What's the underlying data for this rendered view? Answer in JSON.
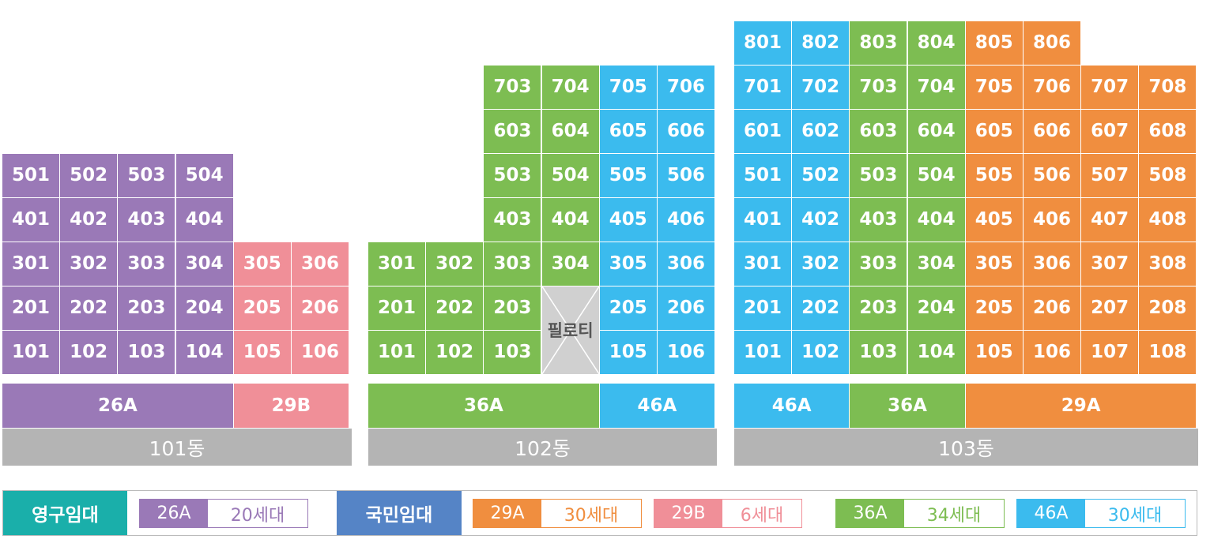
{
  "colors": {
    "26A": "#9a79b7",
    "29B": "#f08f98",
    "36A": "#7dbd52",
    "46A": "#3bbbee",
    "29A": "#f08e3f",
    "grey": "#b4b4b4",
    "yeonggu": "#1aafaa",
    "gukmin": "#5584c6"
  },
  "buildings": [
    {
      "name": "101동",
      "floors": [
        {
          "floor": 5,
          "units": [
            {
              "no": "501",
              "type": "26A"
            },
            {
              "no": "502",
              "type": "26A"
            },
            {
              "no": "503",
              "type": "26A"
            },
            {
              "no": "504",
              "type": "26A"
            }
          ]
        },
        {
          "floor": 4,
          "units": [
            {
              "no": "401",
              "type": "26A"
            },
            {
              "no": "402",
              "type": "26A"
            },
            {
              "no": "403",
              "type": "26A"
            },
            {
              "no": "404",
              "type": "26A"
            }
          ]
        },
        {
          "floor": 3,
          "units": [
            {
              "no": "301",
              "type": "26A"
            },
            {
              "no": "302",
              "type": "26A"
            },
            {
              "no": "303",
              "type": "26A"
            },
            {
              "no": "304",
              "type": "26A"
            },
            {
              "no": "305",
              "type": "29B"
            },
            {
              "no": "306",
              "type": "29B"
            }
          ]
        },
        {
          "floor": 2,
          "units": [
            {
              "no": "201",
              "type": "26A"
            },
            {
              "no": "202",
              "type": "26A"
            },
            {
              "no": "203",
              "type": "26A"
            },
            {
              "no": "204",
              "type": "26A"
            },
            {
              "no": "205",
              "type": "29B"
            },
            {
              "no": "206",
              "type": "29B"
            }
          ]
        },
        {
          "floor": 1,
          "units": [
            {
              "no": "101",
              "type": "26A"
            },
            {
              "no": "102",
              "type": "26A"
            },
            {
              "no": "103",
              "type": "26A"
            },
            {
              "no": "104",
              "type": "26A"
            },
            {
              "no": "105",
              "type": "29B"
            },
            {
              "no": "106",
              "type": "29B"
            }
          ]
        }
      ],
      "type_bar": [
        {
          "label": "26A",
          "type": "26A"
        },
        {
          "label": "29B",
          "type": "29B"
        }
      ]
    },
    {
      "name": "102동",
      "piloti_label": "필로티",
      "floors": [
        {
          "floor": 7,
          "units": [
            {
              "no": "703",
              "type": "36A"
            },
            {
              "no": "704",
              "type": "36A"
            },
            {
              "no": "705",
              "type": "46A"
            },
            {
              "no": "706",
              "type": "46A"
            }
          ]
        },
        {
          "floor": 6,
          "units": [
            {
              "no": "603",
              "type": "36A"
            },
            {
              "no": "604",
              "type": "36A"
            },
            {
              "no": "605",
              "type": "46A"
            },
            {
              "no": "606",
              "type": "46A"
            }
          ]
        },
        {
          "floor": 5,
          "units": [
            {
              "no": "503",
              "type": "36A"
            },
            {
              "no": "504",
              "type": "36A"
            },
            {
              "no": "505",
              "type": "46A"
            },
            {
              "no": "506",
              "type": "46A"
            }
          ]
        },
        {
          "floor": 4,
          "units": [
            {
              "no": "403",
              "type": "36A"
            },
            {
              "no": "404",
              "type": "36A"
            },
            {
              "no": "405",
              "type": "46A"
            },
            {
              "no": "406",
              "type": "46A"
            }
          ]
        },
        {
          "floor": 3,
          "units": [
            {
              "no": "301",
              "type": "36A"
            },
            {
              "no": "302",
              "type": "36A"
            },
            {
              "no": "303",
              "type": "36A"
            },
            {
              "no": "304",
              "type": "36A"
            },
            {
              "no": "305",
              "type": "46A"
            },
            {
              "no": "306",
              "type": "46A"
            }
          ]
        },
        {
          "floor": 2,
          "units": [
            {
              "no": "201",
              "type": "36A"
            },
            {
              "no": "202",
              "type": "36A"
            },
            {
              "no": "203",
              "type": "36A"
            },
            {
              "no": "205",
              "type": "46A"
            },
            {
              "no": "206",
              "type": "46A"
            }
          ]
        },
        {
          "floor": 1,
          "units": [
            {
              "no": "101",
              "type": "36A"
            },
            {
              "no": "102",
              "type": "36A"
            },
            {
              "no": "103",
              "type": "36A"
            },
            {
              "no": "105",
              "type": "46A"
            },
            {
              "no": "106",
              "type": "46A"
            }
          ]
        }
      ],
      "type_bar": [
        {
          "label": "36A",
          "type": "36A"
        },
        {
          "label": "46A",
          "type": "46A"
        }
      ]
    },
    {
      "name": "103동",
      "floors": [
        {
          "floor": 8,
          "units": [
            {
              "no": "801",
              "type": "46A"
            },
            {
              "no": "802",
              "type": "46A"
            },
            {
              "no": "803",
              "type": "36A"
            },
            {
              "no": "804",
              "type": "36A"
            },
            {
              "no": "805",
              "type": "29A"
            },
            {
              "no": "806",
              "type": "29A"
            }
          ]
        },
        {
          "floor": 7,
          "units": [
            {
              "no": "701",
              "type": "46A"
            },
            {
              "no": "702",
              "type": "46A"
            },
            {
              "no": "703",
              "type": "36A"
            },
            {
              "no": "704",
              "type": "36A"
            },
            {
              "no": "705",
              "type": "29A"
            },
            {
              "no": "706",
              "type": "29A"
            },
            {
              "no": "707",
              "type": "29A"
            },
            {
              "no": "708",
              "type": "29A"
            }
          ]
        },
        {
          "floor": 6,
          "units": [
            {
              "no": "601",
              "type": "46A"
            },
            {
              "no": "602",
              "type": "46A"
            },
            {
              "no": "603",
              "type": "36A"
            },
            {
              "no": "604",
              "type": "36A"
            },
            {
              "no": "605",
              "type": "29A"
            },
            {
              "no": "606",
              "type": "29A"
            },
            {
              "no": "607",
              "type": "29A"
            },
            {
              "no": "608",
              "type": "29A"
            }
          ]
        },
        {
          "floor": 5,
          "units": [
            {
              "no": "501",
              "type": "46A"
            },
            {
              "no": "502",
              "type": "46A"
            },
            {
              "no": "503",
              "type": "36A"
            },
            {
              "no": "504",
              "type": "36A"
            },
            {
              "no": "505",
              "type": "29A"
            },
            {
              "no": "506",
              "type": "29A"
            },
            {
              "no": "507",
              "type": "29A"
            },
            {
              "no": "508",
              "type": "29A"
            }
          ]
        },
        {
          "floor": 4,
          "units": [
            {
              "no": "401",
              "type": "46A"
            },
            {
              "no": "402",
              "type": "46A"
            },
            {
              "no": "403",
              "type": "36A"
            },
            {
              "no": "404",
              "type": "36A"
            },
            {
              "no": "405",
              "type": "29A"
            },
            {
              "no": "406",
              "type": "29A"
            },
            {
              "no": "407",
              "type": "29A"
            },
            {
              "no": "408",
              "type": "29A"
            }
          ]
        },
        {
          "floor": 3,
          "units": [
            {
              "no": "301",
              "type": "46A"
            },
            {
              "no": "302",
              "type": "46A"
            },
            {
              "no": "303",
              "type": "36A"
            },
            {
              "no": "304",
              "type": "36A"
            },
            {
              "no": "305",
              "type": "29A"
            },
            {
              "no": "306",
              "type": "29A"
            },
            {
              "no": "307",
              "type": "29A"
            },
            {
              "no": "308",
              "type": "29A"
            }
          ]
        },
        {
          "floor": 2,
          "units": [
            {
              "no": "201",
              "type": "46A"
            },
            {
              "no": "202",
              "type": "46A"
            },
            {
              "no": "203",
              "type": "36A"
            },
            {
              "no": "204",
              "type": "36A"
            },
            {
              "no": "205",
              "type": "29A"
            },
            {
              "no": "206",
              "type": "29A"
            },
            {
              "no": "207",
              "type": "29A"
            },
            {
              "no": "208",
              "type": "29A"
            }
          ]
        },
        {
          "floor": 1,
          "units": [
            {
              "no": "101",
              "type": "46A"
            },
            {
              "no": "102",
              "type": "46A"
            },
            {
              "no": "103",
              "type": "36A"
            },
            {
              "no": "104",
              "type": "36A"
            },
            {
              "no": "105",
              "type": "29A"
            },
            {
              "no": "106",
              "type": "29A"
            },
            {
              "no": "107",
              "type": "29A"
            },
            {
              "no": "108",
              "type": "29A"
            }
          ]
        }
      ],
      "type_bar": [
        {
          "label": "46A",
          "type": "46A"
        },
        {
          "label": "36A",
          "type": "36A"
        },
        {
          "label": "29A",
          "type": "29A"
        }
      ]
    }
  ],
  "legend": {
    "categories": [
      {
        "label": "영구임대",
        "items": [
          {
            "type": "26A",
            "count": "20세대"
          }
        ]
      },
      {
        "label": "국민임대",
        "items": [
          {
            "type": "29A",
            "count": "30세대"
          },
          {
            "type": "29B",
            "count": "6세대"
          },
          {
            "type": "36A",
            "count": "34세대"
          },
          {
            "type": "46A",
            "count": "30세대"
          }
        ]
      }
    ]
  }
}
